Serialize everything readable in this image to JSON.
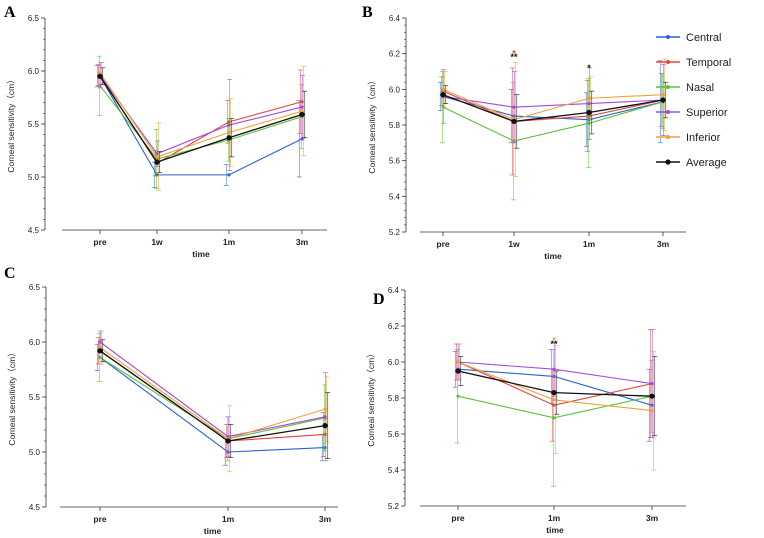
{
  "series_names": [
    "Central",
    "Temporal",
    "Nasal",
    "Superior",
    "Inferior",
    "Average"
  ],
  "colors": {
    "Central": "#2a62d4",
    "Temporal": "#e0463a",
    "Nasal": "#5cc23c",
    "Superior": "#a648df",
    "Inferior": "#eea23b",
    "Average": "#111111"
  },
  "legend": {
    "entries": [
      {
        "name": "Central",
        "color": "#2a62d4"
      },
      {
        "name": "Temporal",
        "color": "#e0463a"
      },
      {
        "name": "Nasal",
        "color": "#5cc23c"
      },
      {
        "name": "Superior",
        "color": "#a648df"
      },
      {
        "name": "Inferior",
        "color": "#eea23b"
      },
      {
        "name": "Average",
        "color": "#111111"
      }
    ]
  },
  "chart_data": [
    {
      "panel": "A",
      "type": "line",
      "xlabel": "time",
      "ylabel": "Corneal sensitivity（cm）",
      "categories": [
        "pre",
        "1w",
        "1m",
        "3m"
      ],
      "ylim": [
        4.5,
        6.5
      ],
      "yticks": [
        "4.5",
        "5.0",
        "5.5",
        "6.0",
        "6.5"
      ],
      "series": [
        {
          "name": "Central",
          "values": [
            5.95,
            5.02,
            5.02,
            5.36
          ],
          "err": [
            0.1,
            0.12,
            0.1,
            0.36
          ]
        },
        {
          "name": "Temporal",
          "values": [
            5.96,
            5.13,
            5.52,
            5.71
          ],
          "err": [
            0.1,
            0.12,
            0.2,
            0.3
          ]
        },
        {
          "name": "Nasal",
          "values": [
            5.86,
            5.17,
            5.35,
            5.57
          ],
          "err": [
            0.28,
            0.28,
            0.2,
            0.3
          ]
        },
        {
          "name": "Superior",
          "values": [
            5.96,
            5.22,
            5.49,
            5.66
          ],
          "err": [
            0.12,
            0.12,
            0.43,
            0.3
          ]
        },
        {
          "name": "Inferior",
          "values": [
            5.98,
            5.19,
            5.42,
            5.62
          ],
          "err": [
            0.1,
            0.32,
            0.32,
            0.42
          ]
        },
        {
          "name": "Average",
          "values": [
            5.95,
            5.14,
            5.37,
            5.59
          ],
          "err": [
            0.08,
            0.1,
            0.18,
            0.22
          ]
        }
      ],
      "annotations": []
    },
    {
      "panel": "B",
      "type": "line",
      "xlabel": "time",
      "ylabel": "Corneal sensitivity（cm）",
      "categories": [
        "pre",
        "1w",
        "1m",
        "3m"
      ],
      "ylim": [
        5.2,
        6.4
      ],
      "yticks": [
        "5.2",
        "5.4",
        "5.6",
        "5.8",
        "6.0",
        "6.2",
        "6.4"
      ],
      "series": [
        {
          "name": "Central",
          "values": [
            5.96,
            5.85,
            5.83,
            5.93
          ],
          "err": [
            0.08,
            0.15,
            0.15,
            0.23
          ]
        },
        {
          "name": "Temporal",
          "values": [
            5.99,
            5.82,
            5.85,
            5.94
          ],
          "err": [
            0.08,
            0.3,
            0.2,
            0.15
          ]
        },
        {
          "name": "Nasal",
          "values": [
            5.9,
            5.71,
            5.81,
            5.93
          ],
          "err": [
            0.2,
            0.33,
            0.25,
            0.15
          ]
        },
        {
          "name": "Superior",
          "values": [
            5.96,
            5.9,
            5.92,
            5.94
          ],
          "err": [
            0.15,
            0.2,
            0.2,
            0.2
          ]
        },
        {
          "name": "Inferior",
          "values": [
            6.0,
            5.83,
            5.95,
            5.97
          ],
          "err": [
            0.1,
            0.32,
            0.12,
            0.2
          ]
        },
        {
          "name": "Average",
          "values": [
            5.97,
            5.82,
            5.87,
            5.94
          ],
          "err": [
            0.05,
            0.15,
            0.12,
            0.1
          ]
        }
      ],
      "annotations": [
        {
          "category": "1w",
          "value": 6.2,
          "text": "*",
          "color": "#e0463a"
        },
        {
          "category": "1w",
          "value": 6.18,
          "text": "**",
          "color": "#111111"
        },
        {
          "category": "1m",
          "value": 6.12,
          "text": "*",
          "color": "#111111"
        }
      ]
    },
    {
      "panel": "C",
      "type": "line",
      "xlabel": "time",
      "ylabel": "Corneal sensitivity（cm）",
      "categories": [
        "pre",
        "1m",
        "3m"
      ],
      "ylim": [
        4.5,
        6.5
      ],
      "yticks": [
        "4.5",
        "5.0",
        "5.5",
        "6.0",
        "6.5"
      ],
      "series": [
        {
          "name": "Central",
          "values": [
            5.86,
            5.0,
            5.04
          ],
          "err": [
            0.12,
            0.12,
            0.12
          ]
        },
        {
          "name": "Temporal",
          "values": [
            5.92,
            5.1,
            5.16
          ],
          "err": [
            0.12,
            0.15,
            0.2
          ]
        },
        {
          "name": "Nasal",
          "values": [
            5.86,
            5.12,
            5.31
          ],
          "err": [
            0.22,
            0.2,
            0.3
          ]
        },
        {
          "name": "Superior",
          "values": [
            6.0,
            5.14,
            5.32
          ],
          "err": [
            0.1,
            0.18,
            0.4
          ]
        },
        {
          "name": "Inferior",
          "values": [
            5.95,
            5.12,
            5.39
          ],
          "err": [
            0.15,
            0.3,
            0.3
          ]
        },
        {
          "name": "Average",
          "values": [
            5.92,
            5.1,
            5.24
          ],
          "err": [
            0.1,
            0.15,
            0.3
          ]
        }
      ],
      "annotations": []
    },
    {
      "panel": "D",
      "type": "line",
      "xlabel": "time",
      "ylabel": "Corneal sensitivity（cm）",
      "categories": [
        "pre",
        "1m",
        "3m"
      ],
      "ylim": [
        5.2,
        6.4
      ],
      "yticks": [
        "5.2",
        "5.4",
        "5.6",
        "5.8",
        "6.0",
        "6.2",
        "6.4"
      ],
      "series": [
        {
          "name": "Central",
          "values": [
            5.96,
            5.92,
            5.76
          ],
          "err": [
            0.1,
            0.15,
            0.2
          ]
        },
        {
          "name": "Temporal",
          "values": [
            6.0,
            5.76,
            5.88
          ],
          "err": [
            0.1,
            0.2,
            0.3
          ]
        },
        {
          "name": "Nasal",
          "values": [
            5.81,
            5.69,
            5.81
          ],
          "err": [
            0.26,
            0.38,
            0.2
          ]
        },
        {
          "name": "Superior",
          "values": [
            6.0,
            5.96,
            5.88
          ],
          "err": [
            0.1,
            0.15,
            0.3
          ]
        },
        {
          "name": "Inferior",
          "values": [
            6.0,
            5.79,
            5.73
          ],
          "err": [
            0.1,
            0.3,
            0.33
          ]
        },
        {
          "name": "Average",
          "values": [
            5.95,
            5.83,
            5.81
          ],
          "err": [
            0.08,
            0.12,
            0.22
          ]
        }
      ],
      "annotations": [
        {
          "category": "1m",
          "value": 6.12,
          "text": "*",
          "color": "#eea23b"
        },
        {
          "category": "1m",
          "value": 6.1,
          "text": "**",
          "color": "#111111"
        }
      ]
    }
  ]
}
